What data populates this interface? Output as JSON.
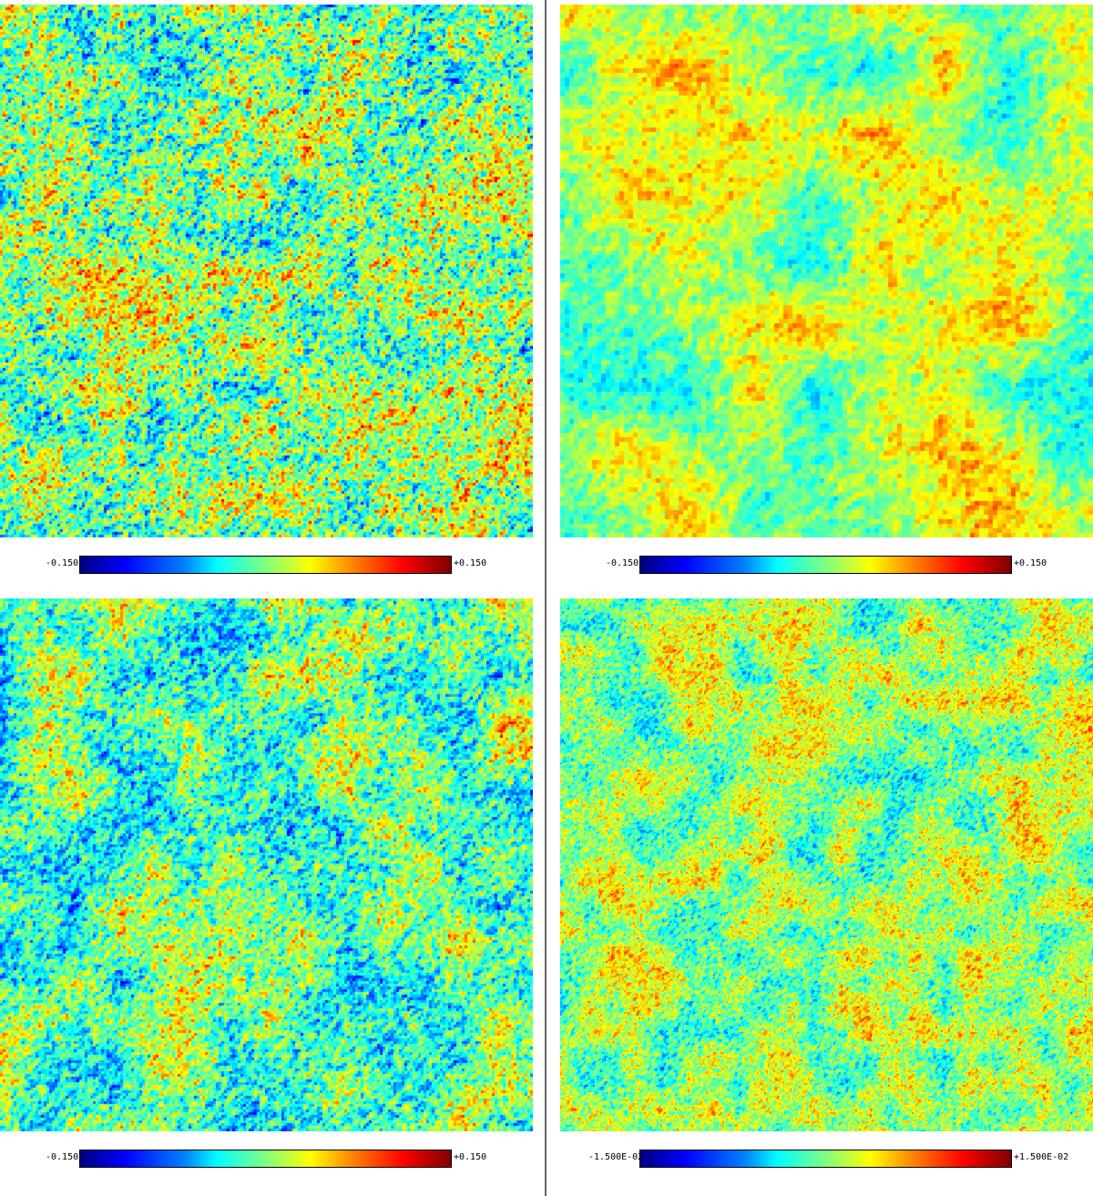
{
  "panels": [
    {
      "id": "top-left",
      "colorbar": {
        "min_label": "-0.150",
        "max_label": "+0.150"
      },
      "style": {
        "seed": 11,
        "scale": 3,
        "bias": 0.0,
        "spread": 1.2
      }
    },
    {
      "id": "top-right",
      "colorbar": {
        "min_label": "-0.150",
        "max_label": "+0.150"
      },
      "style": {
        "seed": 23,
        "scale": 5,
        "bias": 0.08,
        "spread": 0.55
      }
    },
    {
      "id": "bottom-left",
      "colorbar": {
        "min_label": "-0.150",
        "max_label": "+0.150"
      },
      "style": {
        "seed": 37,
        "scale": 3,
        "bias": -0.05,
        "spread": 1.0
      }
    },
    {
      "id": "bottom-right",
      "colorbar": {
        "min_label": "-1.500E-02",
        "max_label": "+1.500E-02"
      },
      "style": {
        "seed": 51,
        "scale": 2,
        "bias": 0.05,
        "spread": 0.8
      }
    }
  ],
  "colormap": [
    "#00007f",
    "#0000ff",
    "#0080ff",
    "#00ffff",
    "#7fff7f",
    "#ffff00",
    "#ff8000",
    "#ff0000",
    "#7f0000"
  ]
}
